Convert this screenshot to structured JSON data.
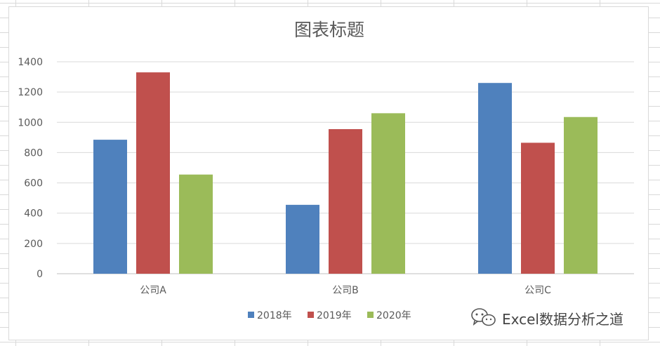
{
  "chart_data": {
    "type": "bar",
    "title": "图表标题",
    "categories": [
      "公司A",
      "公司B",
      "公司C"
    ],
    "series": [
      {
        "name": "2018年",
        "color": "#4f81bd",
        "values": [
          885,
          455,
          1260
        ]
      },
      {
        "name": "2019年",
        "color": "#c0504d",
        "values": [
          1330,
          955,
          865
        ]
      },
      {
        "name": "2020年",
        "color": "#9bbb59",
        "values": [
          655,
          1060,
          1035
        ]
      }
    ],
    "ylim": [
      0,
      1400
    ],
    "yticks": [
      0,
      200,
      400,
      600,
      800,
      1000,
      1200,
      1400
    ],
    "grid": true,
    "legend": "bottom",
    "xlabel": "",
    "ylabel": ""
  },
  "watermark": {
    "icon": "wechat-icon",
    "text": "Excel数据分析之道"
  }
}
